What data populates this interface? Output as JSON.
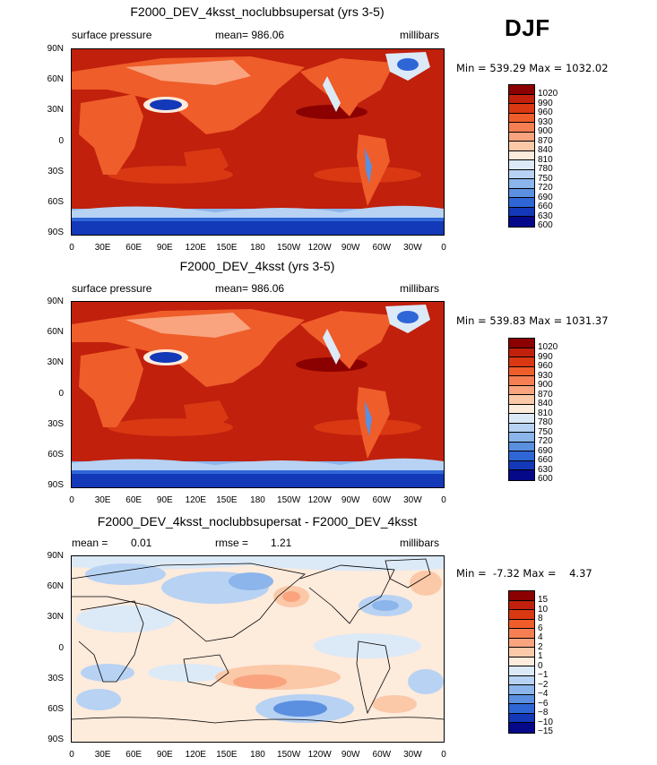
{
  "season": "DJF",
  "panels": [
    {
      "title": "F2000_DEV_4ksst_noclubbsupersat (yrs 3-5)",
      "left": "surface pressure",
      "center": "mean= 986.06",
      "right": "millibars",
      "minmax": "Min = 539.29 Max = 1032.02",
      "colorbar": [
        "1020",
        "990",
        "960",
        "930",
        "900",
        "870",
        "840",
        "810",
        "780",
        "750",
        "720",
        "690",
        "660",
        "630",
        "600"
      ]
    },
    {
      "title": "F2000_DEV_4ksst (yrs 3-5)",
      "left": "surface pressure",
      "center": "mean= 986.06",
      "right": "millibars",
      "minmax": "Min = 539.83 Max = 1031.37",
      "colorbar": [
        "1020",
        "990",
        "960",
        "930",
        "900",
        "870",
        "840",
        "810",
        "780",
        "750",
        "720",
        "690",
        "660",
        "630",
        "600"
      ]
    },
    {
      "title": "F2000_DEV_4ksst_noclubbsupersat - F2000_DEV_4ksst",
      "left_label": "mean =",
      "left_value": "0.01",
      "center_label": "rmse =",
      "center_value": "1.21",
      "right": "millibars",
      "minmax": "Min =  -7.32 Max =    4.37",
      "colorbar": [
        "15",
        "10",
        "8",
        "6",
        "4",
        "2",
        "1",
        "0",
        "−1",
        "−2",
        "−4",
        "−6",
        "−8",
        "−10",
        "−15"
      ]
    }
  ],
  "y_ticks": [
    "90N",
    "60N",
    "30N",
    "0",
    "30S",
    "60S",
    "90S"
  ],
  "x_ticks": [
    "0",
    "30E",
    "60E",
    "90E",
    "120E",
    "150E",
    "180",
    "150W",
    "120W",
    "90W",
    "60W",
    "30W",
    "0"
  ],
  "colors": {
    "abs_palette": [
      "#8b0000",
      "#c0200c",
      "#d93812",
      "#ef5d2a",
      "#f57f53",
      "#f9a47f",
      "#fbc8a8",
      "#fdebdc",
      "#dce9f7",
      "#b7d2f3",
      "#8bb5eb",
      "#5b8fe0",
      "#2f66d6",
      "#1338b8",
      "#06088a"
    ],
    "diff_palette": [
      "#8b0000",
      "#c0200c",
      "#d93812",
      "#ef5d2a",
      "#f57f53",
      "#f9a47f",
      "#fbc8a8",
      "#fdebdc",
      "#dce9f7",
      "#b7d2f3",
      "#8bb5eb",
      "#5b8fe0",
      "#2f66d6",
      "#1338b8",
      "#06088a"
    ]
  }
}
